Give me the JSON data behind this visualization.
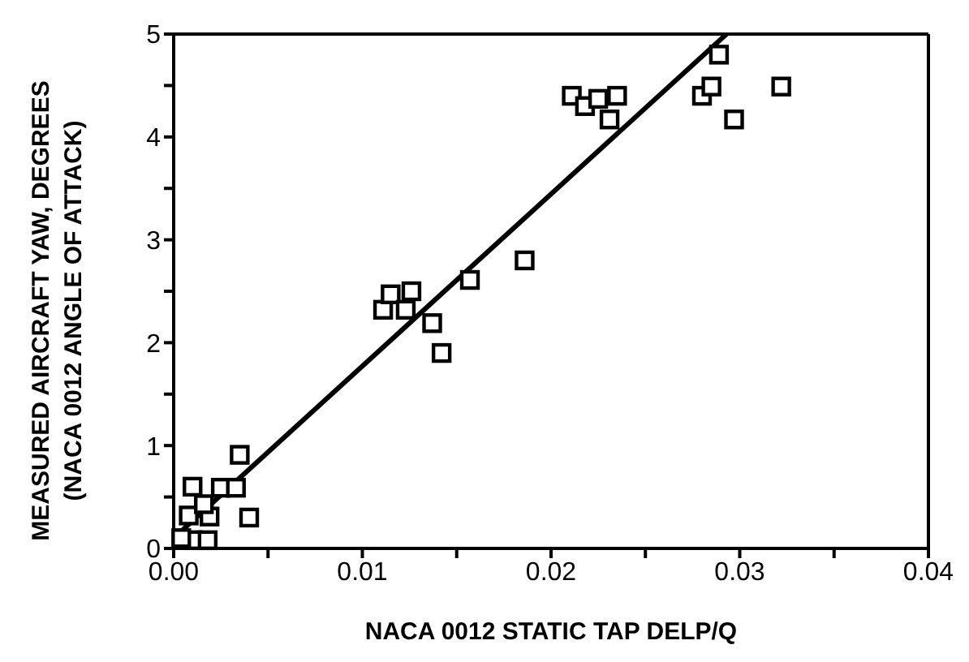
{
  "chart_data": {
    "type": "scatter",
    "xlabel": "NACA 0012 STATIC TAP DELP/Q",
    "ylabel": "MEASURED AIRCRAFT YAW, DEGREES\n(NACA 0012 ANGLE OF ATTACK)",
    "xlim": [
      0,
      0.04
    ],
    "ylim": [
      0,
      5
    ],
    "xticks": [
      {
        "value": 0,
        "label": "0.00"
      },
      {
        "value": 0.005,
        "label": null
      },
      {
        "value": 0.01,
        "label": "0.01"
      },
      {
        "value": 0.015,
        "label": null
      },
      {
        "value": 0.02,
        "label": "0.02"
      },
      {
        "value": 0.025,
        "label": null
      },
      {
        "value": 0.03,
        "label": "0.03"
      },
      {
        "value": 0.035,
        "label": null
      },
      {
        "value": 0.04,
        "label": "0.04"
      }
    ],
    "yticks": [
      0,
      {
        "value": 0.5,
        "label": null
      },
      1,
      {
        "value": 1.5,
        "label": null
      },
      2,
      {
        "value": 2.5,
        "label": null
      },
      3,
      {
        "value": 3.5,
        "label": null
      },
      4,
      {
        "value": 4.5,
        "label": null
      },
      5
    ],
    "marker": "square",
    "series": [
      {
        "color": "#000000",
        "x": [
          0.001,
          0.0008,
          0.0019,
          0.0016,
          0.001,
          0.0018,
          0.0004,
          0.0025,
          0.0033,
          0.0035,
          0.004,
          0.0111,
          0.0115,
          0.0123,
          0.0126,
          0.0137,
          0.0142,
          0.0157,
          0.0186,
          0.0211,
          0.0218,
          0.0225,
          0.0235,
          0.0231,
          0.028,
          0.0285,
          0.0289,
          0.0297,
          0.0322
        ],
        "values": [
          0.6,
          0.32,
          0.31,
          0.43,
          0.08,
          0.08,
          0.1,
          0.59,
          0.59,
          0.91,
          0.3,
          2.32,
          2.47,
          2.32,
          2.5,
          2.19,
          1.9,
          2.61,
          2.8,
          4.4,
          4.3,
          4.37,
          4.4,
          4.17,
          4.4,
          4.49,
          4.8,
          4.17,
          4.49
        ]
      },
      {
        "type": "line",
        "color": "#000000",
        "marker": "none",
        "line_style": "solid",
        "x": [
          0,
          0.0293
        ],
        "values": [
          0.1,
          5
        ]
      }
    ]
  }
}
